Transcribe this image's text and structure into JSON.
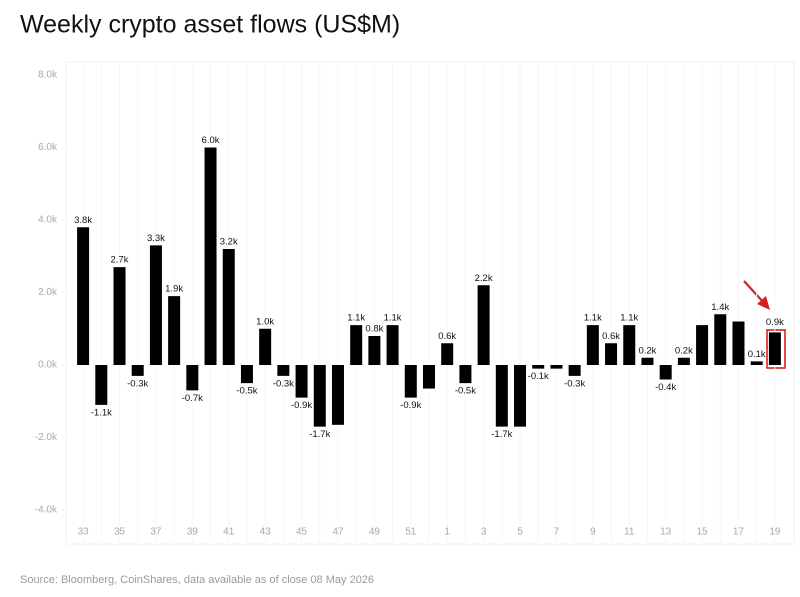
{
  "chart_data": {
    "type": "bar",
    "title": "Weekly crypto asset flows (US$M)",
    "source": "Source: Bloomberg, CoinShares, data available as of close 08 May 2026",
    "categories": [
      "33",
      null,
      "35",
      null,
      "37",
      null,
      "39",
      null,
      "41",
      null,
      "43",
      null,
      "45",
      null,
      "47",
      null,
      "49",
      null,
      "51",
      null,
      "1",
      null,
      "3",
      null,
      "5",
      null,
      "7",
      null,
      "9",
      null,
      "11",
      null,
      "13",
      null,
      "15",
      null,
      "17",
      null,
      "19"
    ],
    "values": [
      3.8,
      -1.1,
      2.7,
      -0.3,
      3.3,
      1.9,
      -0.7,
      6.0,
      3.2,
      -0.5,
      1.0,
      -0.3,
      -0.9,
      -1.7,
      -1.65,
      1.1,
      0.8,
      1.1,
      -0.9,
      -0.65,
      0.6,
      -0.5,
      2.2,
      -1.7,
      -1.7,
      -0.1,
      -0.1,
      -0.3,
      1.1,
      0.6,
      1.1,
      0.2,
      -0.4,
      0.2,
      1.1,
      1.4,
      1.2,
      0.1,
      0.9
    ],
    "value_labels": [
      "3.8k",
      "-1.1k",
      "2.7k",
      "-0.3k",
      "3.3k",
      "1.9k",
      "-0.7k",
      "6.0k",
      "3.2k",
      "-0.5k",
      "1.0k",
      "-0.3k",
      "-0.9k",
      "-1.7k",
      null,
      "1.1k",
      "0.8k",
      "1.1k",
      "-0.9k",
      null,
      "0.6k",
      "-0.5k",
      "2.2k",
      "-1.7k",
      null,
      "-0.1k",
      null,
      "-0.3k",
      "1.1k",
      "0.6k",
      "1.1k",
      "0.2k",
      "-0.4k",
      "0.2k",
      null,
      "1.4k",
      null,
      "0.1k",
      "0.9k"
    ],
    "color": "#000000",
    "ylim": [
      -4,
      8
    ],
    "yticks": [
      {
        "value": 8,
        "label": "8.0k"
      },
      {
        "value": 6,
        "label": "6.0k"
      },
      {
        "value": 4,
        "label": "4.0k"
      },
      {
        "value": 2,
        "label": "2.0k"
      },
      {
        "value": 0,
        "label": "0.0k"
      },
      {
        "value": -2,
        "label": "-2.0k"
      },
      {
        "value": -4,
        "label": "-4.0k"
      }
    ],
    "grid": true
  }
}
